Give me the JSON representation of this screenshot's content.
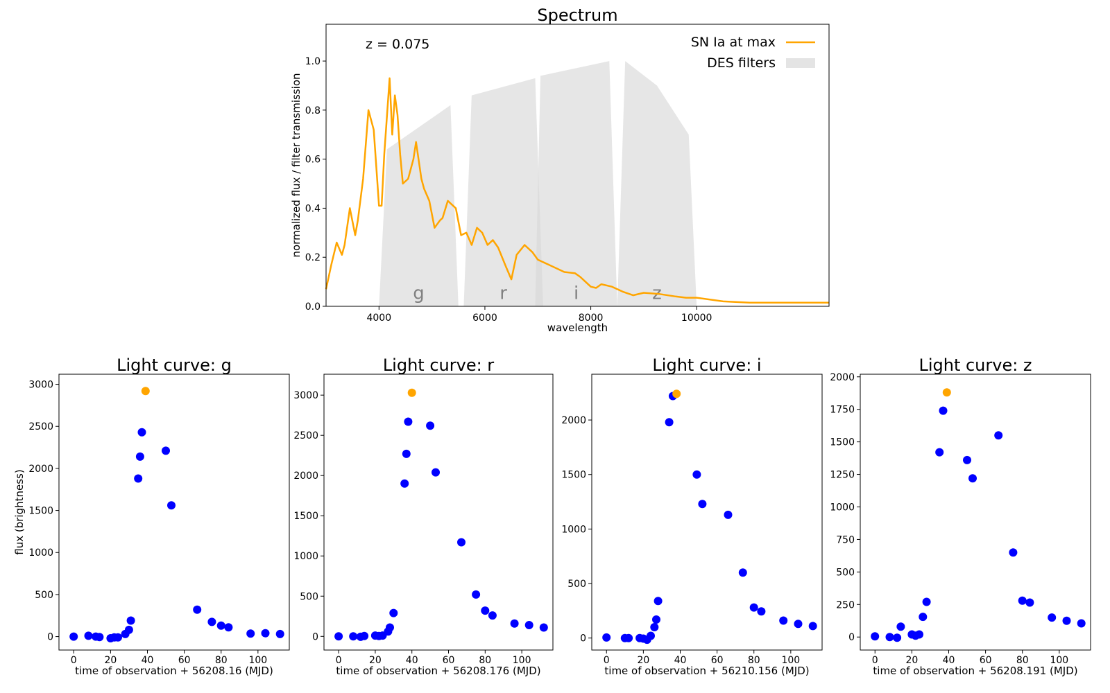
{
  "chart_data": [
    {
      "type": "area",
      "title": "Spectrum",
      "xlabel": "wavelength",
      "ylabel": "normalized flux  /  filter transmission",
      "xlim": [
        3000,
        12500
      ],
      "ylim": [
        0,
        1.15
      ],
      "xticks": [
        4000,
        6000,
        8000,
        10000
      ],
      "yticks": [
        0.0,
        0.2,
        0.4,
        0.6,
        0.8,
        1.0
      ],
      "annotation": "z = 0.075",
      "legend_position": "top-right",
      "legend": [
        {
          "label": "SN Ia at max",
          "color": "#ffa500"
        },
        {
          "label": "DES filters",
          "color": "#e4e4e4"
        }
      ],
      "filters": [
        {
          "name": "g",
          "x": [
            4000,
            4150,
            5350,
            5500
          ],
          "y": [
            0,
            0.64,
            0.82,
            0
          ]
        },
        {
          "name": "r",
          "x": [
            5600,
            5750,
            6950,
            7100
          ],
          "y": [
            0,
            0.86,
            0.93,
            0
          ]
        },
        {
          "name": "i",
          "x": [
            6950,
            7050,
            8350,
            8500
          ],
          "y": [
            0,
            0.94,
            1.0,
            0
          ]
        },
        {
          "name": "z",
          "x": [
            8500,
            8650,
            9250,
            9850,
            10000
          ],
          "y": [
            0,
            1.0,
            0.9,
            0.7,
            0
          ]
        }
      ],
      "spectrum": {
        "name": "SN Ia at max",
        "color": "#ffa500",
        "x": [
          3000,
          3100,
          3200,
          3300,
          3350,
          3450,
          3550,
          3600,
          3700,
          3800,
          3900,
          4000,
          4050,
          4100,
          4200,
          4250,
          4300,
          4350,
          4400,
          4450,
          4550,
          4650,
          4700,
          4800,
          4850,
          4950,
          5050,
          5150,
          5200,
          5300,
          5450,
          5550,
          5650,
          5750,
          5850,
          5950,
          6050,
          6150,
          6250,
          6400,
          6500,
          6600,
          6750,
          6900,
          7000,
          7200,
          7500,
          7700,
          7800,
          7900,
          8000,
          8100,
          8200,
          8400,
          8600,
          8800,
          9000,
          9300,
          9600,
          9800,
          10000,
          10500,
          11000,
          12000,
          12500
        ],
        "y": [
          0.07,
          0.17,
          0.26,
          0.21,
          0.25,
          0.4,
          0.29,
          0.35,
          0.52,
          0.8,
          0.72,
          0.41,
          0.41,
          0.62,
          0.93,
          0.7,
          0.86,
          0.78,
          0.62,
          0.5,
          0.52,
          0.6,
          0.67,
          0.52,
          0.48,
          0.43,
          0.32,
          0.35,
          0.36,
          0.43,
          0.4,
          0.29,
          0.3,
          0.25,
          0.32,
          0.3,
          0.25,
          0.27,
          0.24,
          0.16,
          0.11,
          0.21,
          0.25,
          0.22,
          0.19,
          0.17,
          0.14,
          0.135,
          0.12,
          0.1,
          0.08,
          0.075,
          0.09,
          0.08,
          0.06,
          0.045,
          0.055,
          0.05,
          0.04,
          0.035,
          0.035,
          0.02,
          0.015,
          0.015,
          0.015
        ]
      }
    },
    {
      "type": "scatter",
      "title": "Light curve: g",
      "xlabel": "time of observation + 56208.16 (MJD)",
      "ylabel": "flux (brightness)",
      "xlim": [
        -8,
        117
      ],
      "ylim": [
        -160,
        3120
      ],
      "xticks": [
        0,
        20,
        40,
        60,
        80,
        100
      ],
      "yticks": [
        0,
        500,
        1000,
        1500,
        2000,
        2500,
        3000
      ],
      "series": [
        {
          "color": "#0000ff",
          "x": [
            0,
            8,
            12,
            14,
            20,
            22,
            24,
            28,
            30,
            31,
            35,
            36,
            37,
            50,
            53,
            67,
            75,
            80,
            84,
            96,
            104,
            112
          ],
          "y": [
            0,
            10,
            0,
            -5,
            -20,
            -10,
            -10,
            30,
            80,
            190,
            1880,
            2140,
            2430,
            2210,
            1560,
            320,
            175,
            130,
            110,
            35,
            40,
            30
          ]
        },
        {
          "color": "#ffa500",
          "x": [
            39
          ],
          "y": [
            2920
          ]
        }
      ]
    },
    {
      "type": "scatter",
      "title": "Light curve: r",
      "xlabel": "time of observation + 56208.176 (MJD)",
      "ylabel": "",
      "xlim": [
        -8,
        117
      ],
      "ylim": [
        -170,
        3260
      ],
      "xticks": [
        0,
        20,
        40,
        60,
        80,
        100
      ],
      "yticks": [
        0,
        500,
        1000,
        1500,
        2000,
        2500,
        3000
      ],
      "series": [
        {
          "color": "#0000ff",
          "x": [
            0,
            8,
            12,
            14,
            20,
            22,
            24,
            27,
            28,
            30,
            36,
            37,
            38,
            50,
            53,
            67,
            75,
            80,
            84,
            96,
            104,
            112
          ],
          "y": [
            0,
            0,
            -5,
            5,
            10,
            5,
            10,
            60,
            110,
            290,
            1900,
            2270,
            2670,
            2620,
            2040,
            1170,
            520,
            320,
            260,
            160,
            140,
            110
          ]
        },
        {
          "color": "#ffa500",
          "x": [
            40
          ],
          "y": [
            3030
          ]
        }
      ]
    },
    {
      "type": "scatter",
      "title": "Light curve: i",
      "xlabel": "time of observation + 56210.156 (MJD)",
      "ylabel": "",
      "xlim": [
        -8,
        117
      ],
      "ylim": [
        -110,
        2420
      ],
      "xticks": [
        0,
        20,
        40,
        60,
        80,
        100
      ],
      "yticks": [
        0,
        500,
        1000,
        1500,
        2000
      ],
      "series": [
        {
          "color": "#0000ff",
          "x": [
            0,
            10,
            12,
            18,
            20,
            22,
            24,
            26,
            27,
            28,
            34,
            36,
            49,
            52,
            66,
            74,
            80,
            84,
            96,
            104,
            112
          ],
          "y": [
            5,
            0,
            0,
            0,
            -5,
            -15,
            20,
            100,
            170,
            340,
            1980,
            2220,
            1500,
            1230,
            1130,
            600,
            280,
            245,
            160,
            130,
            110
          ]
        },
        {
          "color": "#ffa500",
          "x": [
            38
          ],
          "y": [
            2240
          ]
        }
      ]
    },
    {
      "type": "scatter",
      "title": "Light curve: z",
      "xlabel": "time of observation + 56208.191 (MJD)",
      "ylabel": "",
      "xlim": [
        -8,
        117
      ],
      "ylim": [
        -100,
        2020
      ],
      "xticks": [
        0,
        20,
        40,
        60,
        80,
        100
      ],
      "yticks": [
        0,
        250,
        500,
        750,
        1000,
        1250,
        1500,
        1750,
        2000
      ],
      "series": [
        {
          "color": "#0000ff",
          "x": [
            0,
            8,
            12,
            14,
            20,
            22,
            24,
            26,
            28,
            35,
            37,
            50,
            53,
            67,
            75,
            80,
            84,
            96,
            104,
            112
          ],
          "y": [
            5,
            0,
            -5,
            80,
            20,
            10,
            20,
            155,
            270,
            1420,
            1740,
            1360,
            1220,
            1550,
            650,
            280,
            265,
            150,
            125,
            105
          ]
        },
        {
          "color": "#ffa500",
          "x": [
            39
          ],
          "y": [
            1880
          ]
        }
      ]
    }
  ]
}
